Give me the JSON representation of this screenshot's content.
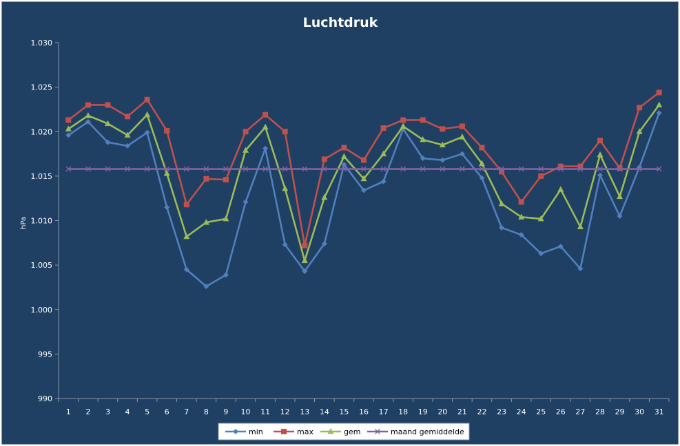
{
  "chart_data": {
    "type": "line",
    "title": "Luchtdruk",
    "xlabel": "",
    "ylabel": "hPa",
    "ylim": [
      990,
      1030
    ],
    "y_ticks": [
      "990",
      "995",
      "1.000",
      "1.005",
      "1.010",
      "1.015",
      "1.020",
      "1.025",
      "1.030"
    ],
    "grid": false,
    "legend_position": "bottom",
    "categories": [
      "1",
      "2",
      "3",
      "4",
      "5",
      "6",
      "7",
      "8",
      "9",
      "10",
      "11",
      "12",
      "13",
      "14",
      "15",
      "16",
      "17",
      "18",
      "19",
      "20",
      "21",
      "22",
      "23",
      "24",
      "25",
      "26",
      "27",
      "28",
      "29",
      "30",
      "31"
    ],
    "series": [
      {
        "name": "min",
        "color": "#4f81bd",
        "marker": "diamond",
        "values": [
          1019.6,
          1021.1,
          1018.8,
          1018.4,
          1019.9,
          1011.5,
          1004.5,
          1002.6,
          1003.9,
          1012.1,
          1018.1,
          1007.3,
          1004.3,
          1007.4,
          1016.3,
          1013.4,
          1014.4,
          1020.3,
          1017.0,
          1016.8,
          1017.5,
          1014.8,
          1009.2,
          1008.4,
          1006.3,
          1007.1,
          1004.6,
          1015.1,
          1010.5,
          1016.0,
          1022.1
        ]
      },
      {
        "name": "max",
        "color": "#c0504d",
        "marker": "square",
        "values": [
          1021.3,
          1023.0,
          1023.0,
          1021.7,
          1023.6,
          1020.1,
          1011.8,
          1014.7,
          1014.6,
          1020.0,
          1021.9,
          1020.0,
          1007.2,
          1016.9,
          1018.2,
          1016.8,
          1020.4,
          1021.3,
          1021.3,
          1020.3,
          1020.6,
          1018.2,
          1015.5,
          1012.1,
          1015.0,
          1016.1,
          1016.1,
          1019.0,
          1015.9,
          1022.7,
          1024.4
        ]
      },
      {
        "name": "gem",
        "color": "#9bbb59",
        "marker": "triangle",
        "values": [
          1020.3,
          1021.8,
          1020.9,
          1019.6,
          1021.9,
          1015.3,
          1008.2,
          1009.8,
          1010.2,
          1017.9,
          1020.5,
          1013.6,
          1005.5,
          1012.6,
          1017.2,
          1014.7,
          1017.5,
          1020.6,
          1019.1,
          1018.5,
          1019.4,
          1016.4,
          1011.9,
          1010.4,
          1010.2,
          1013.5,
          1009.3,
          1017.4,
          1012.7,
          1020.0,
          1023.0
        ]
      },
      {
        "name": "maand gemiddelde",
        "color": "#8064a2",
        "marker": "x",
        "values": [
          1015.8,
          1015.8,
          1015.8,
          1015.8,
          1015.8,
          1015.8,
          1015.8,
          1015.8,
          1015.8,
          1015.8,
          1015.8,
          1015.8,
          1015.8,
          1015.8,
          1015.8,
          1015.8,
          1015.8,
          1015.8,
          1015.8,
          1015.8,
          1015.8,
          1015.8,
          1015.8,
          1015.8,
          1015.8,
          1015.8,
          1015.8,
          1015.8,
          1015.8,
          1015.8,
          1015.8
        ]
      }
    ]
  }
}
